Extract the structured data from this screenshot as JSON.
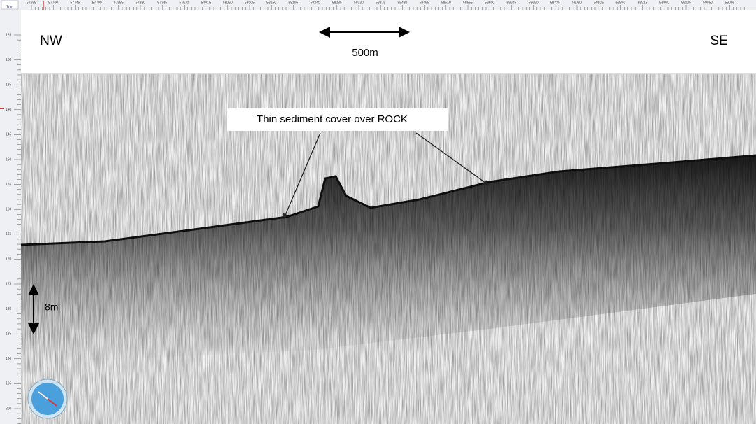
{
  "toolbar": {
    "button": "Trim"
  },
  "top_ruler": {
    "labels": [
      57655,
      57700,
      57745,
      57790,
      57835,
      57880,
      57925,
      57970,
      58015,
      58060,
      58105,
      58150,
      58195,
      58240,
      58285,
      58330,
      58375,
      58420,
      58465,
      58510,
      58555,
      58600,
      58645,
      58690,
      58735,
      58780,
      58825,
      58870,
      58915,
      58960,
      59005,
      59050,
      59095
    ]
  },
  "left_ruler": {
    "labels": [
      125,
      130,
      135,
      140,
      145,
      150,
      155,
      160,
      165,
      170,
      175,
      180,
      185,
      190,
      195,
      200
    ]
  },
  "annotations": {
    "left_direction": "NW",
    "right_direction": "SE",
    "horizontal_scale": "500m",
    "vertical_scale": "8m",
    "callout": "Thin sediment cover over ROCK"
  }
}
